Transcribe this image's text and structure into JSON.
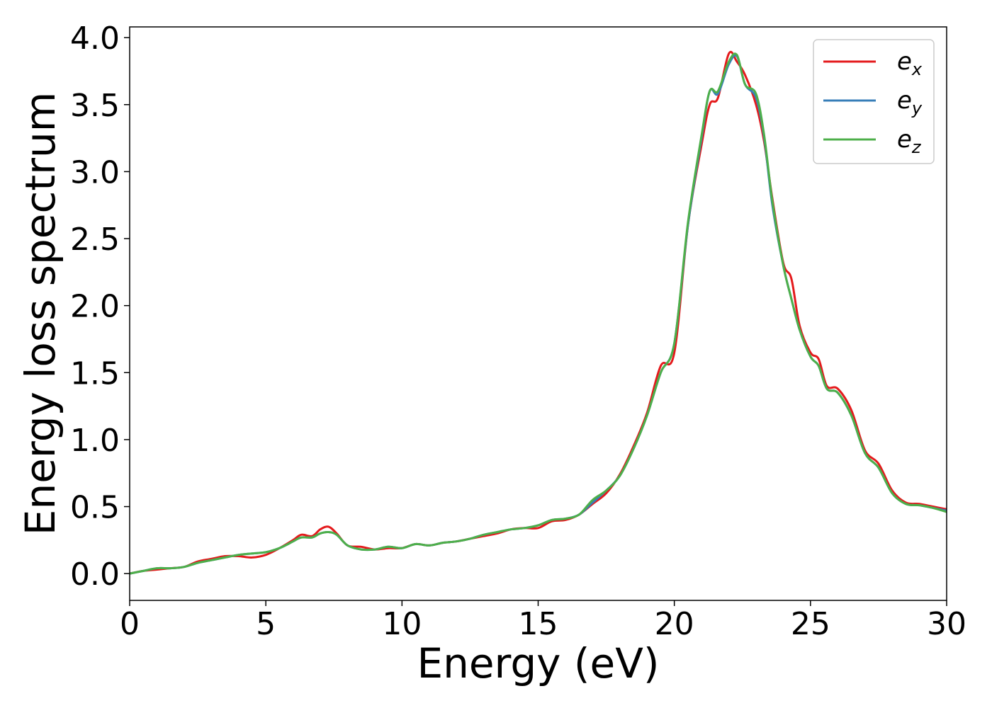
{
  "chart_data": {
    "type": "line",
    "xlabel": "Energy (eV)",
    "ylabel": "Energy loss spectrum",
    "xlim": [
      0,
      30
    ],
    "ylim": [
      -0.2,
      4.08
    ],
    "xticks": [
      0,
      5,
      10,
      15,
      20,
      25,
      30
    ],
    "xtick_labels": [
      "0",
      "5",
      "10",
      "15",
      "20",
      "25",
      "30"
    ],
    "yticks": [
      0.0,
      0.5,
      1.0,
      1.5,
      2.0,
      2.5,
      3.0,
      3.5,
      4.0
    ],
    "ytick_labels": [
      "0.0",
      "0.5",
      "1.0",
      "1.5",
      "2.0",
      "2.5",
      "3.0",
      "3.5",
      "4.0"
    ],
    "grid": false,
    "legend_position": "top-right",
    "series": [
      {
        "name": "e",
        "sub": "x",
        "color": "#e41a1c",
        "x": [
          0,
          0.5,
          1,
          1.5,
          2,
          2.5,
          3,
          3.5,
          4,
          4.5,
          5,
          5.5,
          6,
          6.3,
          6.7,
          7,
          7.3,
          7.6,
          8,
          8.5,
          9,
          9.5,
          10,
          10.5,
          11,
          11.5,
          12,
          12.5,
          13,
          13.5,
          14,
          14.5,
          15,
          15.5,
          16,
          16.5,
          17,
          17.5,
          18,
          18.5,
          19,
          19.5,
          20,
          20.5,
          21,
          21.3,
          21.6,
          22,
          22.3,
          22.6,
          23,
          23.3,
          23.6,
          24,
          24.3,
          24.6,
          25,
          25.3,
          25.6,
          26,
          26.5,
          27,
          27.5,
          28,
          28.5,
          29,
          29.5,
          30
        ],
        "y": [
          0.0,
          0.02,
          0.03,
          0.04,
          0.05,
          0.09,
          0.11,
          0.13,
          0.13,
          0.12,
          0.14,
          0.19,
          0.25,
          0.29,
          0.28,
          0.33,
          0.35,
          0.3,
          0.21,
          0.2,
          0.18,
          0.19,
          0.19,
          0.22,
          0.21,
          0.23,
          0.24,
          0.26,
          0.28,
          0.3,
          0.33,
          0.34,
          0.34,
          0.39,
          0.4,
          0.44,
          0.52,
          0.6,
          0.74,
          0.95,
          1.2,
          1.55,
          1.65,
          2.6,
          3.2,
          3.5,
          3.55,
          3.88,
          3.82,
          3.72,
          3.5,
          3.22,
          2.8,
          2.32,
          2.2,
          1.85,
          1.65,
          1.6,
          1.4,
          1.38,
          1.22,
          0.92,
          0.82,
          0.62,
          0.53,
          0.52,
          0.5,
          0.48
        ]
      },
      {
        "name": "e",
        "sub": "y",
        "color": "#377eb8",
        "x": [
          0,
          0.5,
          1,
          1.5,
          2,
          2.5,
          3,
          3.5,
          4,
          4.5,
          5,
          5.5,
          6,
          6.3,
          6.7,
          7,
          7.3,
          7.6,
          8,
          8.5,
          9,
          9.5,
          10,
          10.5,
          11,
          11.5,
          12,
          12.5,
          13,
          13.5,
          14,
          14.5,
          15,
          15.5,
          16,
          16.5,
          17,
          17.5,
          18,
          18.5,
          19,
          19.5,
          20,
          20.5,
          21,
          21.3,
          21.6,
          22,
          22.3,
          22.6,
          23,
          23.3,
          23.6,
          24,
          24.3,
          24.6,
          25,
          25.3,
          25.6,
          26,
          26.5,
          27,
          27.5,
          28,
          28.5,
          29,
          29.5,
          30
        ],
        "y": [
          0.0,
          0.02,
          0.04,
          0.04,
          0.05,
          0.08,
          0.1,
          0.12,
          0.14,
          0.15,
          0.16,
          0.19,
          0.24,
          0.27,
          0.27,
          0.3,
          0.31,
          0.29,
          0.21,
          0.18,
          0.18,
          0.2,
          0.19,
          0.22,
          0.21,
          0.23,
          0.24,
          0.26,
          0.29,
          0.31,
          0.33,
          0.34,
          0.36,
          0.4,
          0.41,
          0.44,
          0.53,
          0.62,
          0.73,
          0.93,
          1.18,
          1.5,
          1.72,
          2.6,
          3.25,
          3.6,
          3.58,
          3.8,
          3.86,
          3.65,
          3.55,
          3.25,
          2.75,
          2.3,
          2.05,
          1.82,
          1.62,
          1.55,
          1.38,
          1.35,
          1.18,
          0.9,
          0.79,
          0.6,
          0.52,
          0.51,
          0.49,
          0.47
        ]
      },
      {
        "name": "e",
        "sub": "z",
        "color": "#4daf4a",
        "x": [
          0,
          0.5,
          1,
          1.5,
          2,
          2.5,
          3,
          3.5,
          4,
          4.5,
          5,
          5.5,
          6,
          6.3,
          6.7,
          7,
          7.3,
          7.6,
          8,
          8.5,
          9,
          9.5,
          10,
          10.5,
          11,
          11.5,
          12,
          12.5,
          13,
          13.5,
          14,
          14.5,
          15,
          15.5,
          16,
          16.5,
          17,
          17.5,
          18,
          18.5,
          19,
          19.5,
          20,
          20.5,
          21,
          21.3,
          21.6,
          22,
          22.3,
          22.6,
          23,
          23.3,
          23.6,
          24,
          24.3,
          24.6,
          25,
          25.3,
          25.6,
          26,
          26.5,
          27,
          27.5,
          28,
          28.5,
          29,
          29.5,
          30
        ],
        "y": [
          0.0,
          0.02,
          0.04,
          0.04,
          0.05,
          0.08,
          0.1,
          0.12,
          0.14,
          0.15,
          0.16,
          0.19,
          0.24,
          0.27,
          0.27,
          0.3,
          0.31,
          0.29,
          0.21,
          0.18,
          0.18,
          0.2,
          0.19,
          0.22,
          0.21,
          0.23,
          0.24,
          0.26,
          0.29,
          0.31,
          0.33,
          0.34,
          0.36,
          0.4,
          0.41,
          0.44,
          0.55,
          0.62,
          0.73,
          0.93,
          1.18,
          1.5,
          1.72,
          2.62,
          3.27,
          3.6,
          3.6,
          3.82,
          3.87,
          3.65,
          3.58,
          3.27,
          2.78,
          2.3,
          2.05,
          1.82,
          1.62,
          1.55,
          1.38,
          1.35,
          1.18,
          0.9,
          0.79,
          0.6,
          0.52,
          0.51,
          0.49,
          0.46
        ]
      }
    ]
  }
}
